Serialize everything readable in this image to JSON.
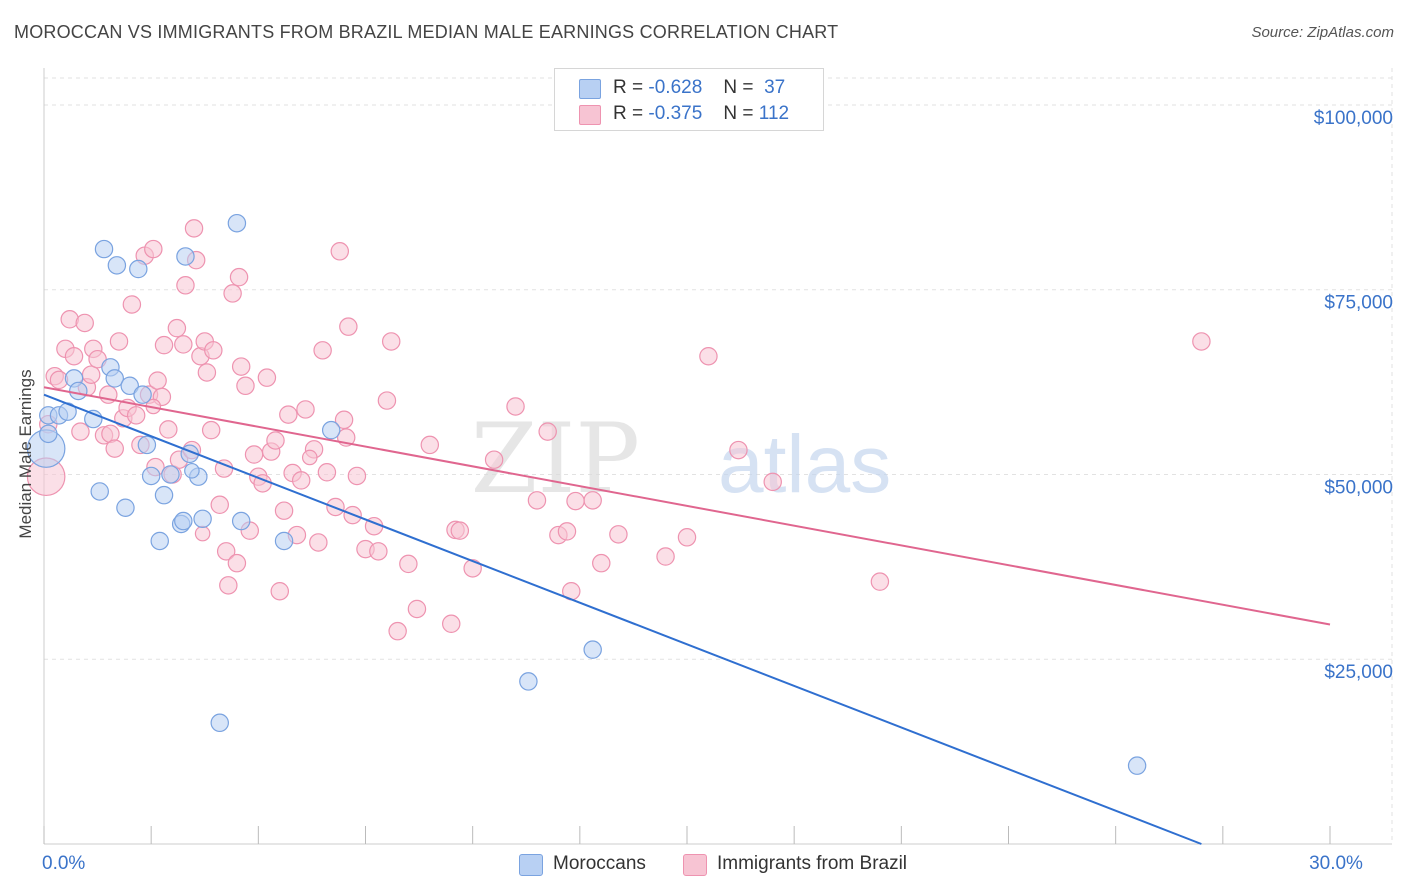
{
  "title": "MOROCCAN VS IMMIGRANTS FROM BRAZIL MEDIAN MALE EARNINGS CORRELATION CHART",
  "source": "Source: ZipAtlas.com",
  "watermark": {
    "part1": "ZIP",
    "part2": "atlas"
  },
  "legend": {
    "rows": [
      {
        "r_label": "R =",
        "r_value": "-0.628",
        "n_label": "N =",
        "n_value": "37"
      },
      {
        "r_label": "R =",
        "r_value": "-0.375",
        "n_label": "N =",
        "n_value": "112"
      }
    ]
  },
  "bottom_legend": {
    "moroccans": "Moroccans",
    "brazil": "Immigrants from Brazil"
  },
  "colors": {
    "moroccans_fill": "#b8d0f3",
    "moroccans_stroke": "#7aa3e0",
    "moroccans_line": "#2f6fd0",
    "brazil_fill": "#f7c4d3",
    "brazil_stroke": "#ee93b0",
    "brazil_line": "#e0668f",
    "tick_label": "#3a73c9",
    "grid": "#e2e2e2"
  },
  "chart_data": {
    "type": "scatter",
    "title": "MOROCCAN VS IMMIGRANTS FROM BRAZIL MEDIAN MALE EARNINGS CORRELATION CHART",
    "xlabel": "",
    "ylabel": "Median Male Earnings",
    "xlim": [
      0,
      30
    ],
    "ylim": [
      0,
      105000
    ],
    "x_tick_labels": [
      {
        "value": 0,
        "label": "0.0%"
      },
      {
        "value": 30,
        "label": "30.0%"
      }
    ],
    "y_tick_labels": [
      {
        "value": 25000,
        "label": "$25,000"
      },
      {
        "value": 50000,
        "label": "$50,000"
      },
      {
        "value": 75000,
        "label": "$75,000"
      },
      {
        "value": 100000,
        "label": "$100,000"
      }
    ],
    "grid": true,
    "legend_position": "top-center",
    "series": [
      {
        "name": "Moroccans",
        "r": -0.628,
        "n": 37,
        "trend": {
          "x": [
            0,
            27.0
          ],
          "y": [
            60800,
            0
          ]
        },
        "points": [
          [
            0.05,
            53500,
            26
          ],
          [
            0.1,
            58000,
            12
          ],
          [
            0.1,
            55500,
            12
          ],
          [
            0.35,
            58000,
            12
          ],
          [
            0.55,
            58500,
            12
          ],
          [
            0.7,
            63000,
            12
          ],
          [
            0.8,
            61300,
            12
          ],
          [
            1.15,
            57500,
            12
          ],
          [
            1.3,
            47700,
            12
          ],
          [
            1.4,
            80500,
            12
          ],
          [
            1.55,
            64500,
            12
          ],
          [
            1.65,
            63000,
            12
          ],
          [
            1.7,
            78300,
            12
          ],
          [
            1.9,
            45500,
            12
          ],
          [
            2.0,
            62000,
            12
          ],
          [
            2.2,
            77800,
            12
          ],
          [
            2.3,
            60800,
            12
          ],
          [
            2.4,
            54000,
            12
          ],
          [
            2.5,
            49800,
            12
          ],
          [
            2.7,
            41000,
            12
          ],
          [
            2.8,
            47200,
            12
          ],
          [
            2.95,
            50000,
            12
          ],
          [
            3.2,
            43300,
            12
          ],
          [
            3.25,
            43700,
            12
          ],
          [
            3.3,
            79500,
            12
          ],
          [
            3.4,
            52800,
            12
          ],
          [
            3.6,
            49700,
            12
          ],
          [
            3.7,
            44000,
            12
          ],
          [
            4.1,
            16400,
            12
          ],
          [
            4.5,
            84000,
            12
          ],
          [
            4.6,
            43700,
            12
          ],
          [
            5.6,
            41000,
            12
          ],
          [
            6.7,
            56000,
            12
          ],
          [
            11.3,
            22000,
            12
          ],
          [
            12.8,
            26300,
            12
          ],
          [
            25.5,
            10600,
            12
          ],
          [
            3.45,
            50500,
            10
          ]
        ]
      },
      {
        "name": "Immigrants from Brazil",
        "r": -0.375,
        "n": 112,
        "trend": {
          "x": [
            0,
            30
          ],
          "y": [
            61800,
            29700
          ]
        },
        "points": [
          [
            0.05,
            49700,
            26
          ],
          [
            0.1,
            56800,
            12
          ],
          [
            0.25,
            63300,
            12
          ],
          [
            0.35,
            62800,
            12
          ],
          [
            0.5,
            67000,
            12
          ],
          [
            0.6,
            71000,
            12
          ],
          [
            0.7,
            66000,
            12
          ],
          [
            0.85,
            55800,
            12
          ],
          [
            0.95,
            70500,
            12
          ],
          [
            1.0,
            61800,
            12
          ],
          [
            1.1,
            63500,
            12
          ],
          [
            1.15,
            67000,
            12
          ],
          [
            1.25,
            65600,
            12
          ],
          [
            1.4,
            55300,
            12
          ],
          [
            1.5,
            60800,
            12
          ],
          [
            1.55,
            55500,
            12
          ],
          [
            1.65,
            53500,
            12
          ],
          [
            1.75,
            68000,
            12
          ],
          [
            1.85,
            57600,
            12
          ],
          [
            1.95,
            59000,
            12
          ],
          [
            2.05,
            73000,
            12
          ],
          [
            2.15,
            58000,
            12
          ],
          [
            2.25,
            54000,
            12
          ],
          [
            2.35,
            79600,
            12
          ],
          [
            2.45,
            60800,
            12
          ],
          [
            2.55,
            80500,
            12
          ],
          [
            2.6,
            51000,
            12
          ],
          [
            2.65,
            62700,
            12
          ],
          [
            2.75,
            60500,
            12
          ],
          [
            2.8,
            67500,
            12
          ],
          [
            2.9,
            56100,
            12
          ],
          [
            3.0,
            50000,
            12
          ],
          [
            3.1,
            69800,
            12
          ],
          [
            3.15,
            52000,
            12
          ],
          [
            3.25,
            67600,
            12
          ],
          [
            3.3,
            75600,
            12
          ],
          [
            3.45,
            53300,
            12
          ],
          [
            3.5,
            83300,
            12
          ],
          [
            3.55,
            79000,
            12
          ],
          [
            3.65,
            66000,
            12
          ],
          [
            3.75,
            68000,
            12
          ],
          [
            3.8,
            63800,
            12
          ],
          [
            3.9,
            56000,
            12
          ],
          [
            3.95,
            66800,
            12
          ],
          [
            4.1,
            45900,
            12
          ],
          [
            4.2,
            50800,
            12
          ],
          [
            4.25,
            39600,
            12
          ],
          [
            4.3,
            35000,
            12
          ],
          [
            4.4,
            74500,
            12
          ],
          [
            4.5,
            38000,
            12
          ],
          [
            4.55,
            76700,
            12
          ],
          [
            4.6,
            64600,
            12
          ],
          [
            4.7,
            62000,
            12
          ],
          [
            4.8,
            42400,
            12
          ],
          [
            4.9,
            52700,
            12
          ],
          [
            5.0,
            49700,
            12
          ],
          [
            5.1,
            48800,
            12
          ],
          [
            5.2,
            63100,
            12
          ],
          [
            5.3,
            53100,
            12
          ],
          [
            5.4,
            54600,
            12
          ],
          [
            5.5,
            34200,
            12
          ],
          [
            5.6,
            45100,
            12
          ],
          [
            5.7,
            58100,
            12
          ],
          [
            5.8,
            50200,
            12
          ],
          [
            5.9,
            41800,
            12
          ],
          [
            6.0,
            49200,
            12
          ],
          [
            6.1,
            58800,
            12
          ],
          [
            6.3,
            53400,
            12
          ],
          [
            6.4,
            40800,
            12
          ],
          [
            6.5,
            66800,
            12
          ],
          [
            6.6,
            50300,
            12
          ],
          [
            6.8,
            45600,
            12
          ],
          [
            6.9,
            80200,
            12
          ],
          [
            7.0,
            57400,
            12
          ],
          [
            7.05,
            55000,
            12
          ],
          [
            7.1,
            70000,
            12
          ],
          [
            7.2,
            44500,
            12
          ],
          [
            7.3,
            49800,
            12
          ],
          [
            7.5,
            39900,
            12
          ],
          [
            7.7,
            43000,
            12
          ],
          [
            7.8,
            39600,
            12
          ],
          [
            8.0,
            60000,
            12
          ],
          [
            8.1,
            68000,
            12
          ],
          [
            8.25,
            28800,
            12
          ],
          [
            8.5,
            37900,
            12
          ],
          [
            8.7,
            31800,
            12
          ],
          [
            9.0,
            54000,
            12
          ],
          [
            9.5,
            29800,
            12
          ],
          [
            9.6,
            42500,
            12
          ],
          [
            9.7,
            42400,
            12
          ],
          [
            10.0,
            37300,
            12
          ],
          [
            10.5,
            52000,
            12
          ],
          [
            11.0,
            59200,
            12
          ],
          [
            11.5,
            46500,
            12
          ],
          [
            11.75,
            55800,
            12
          ],
          [
            12.0,
            41800,
            12
          ],
          [
            12.2,
            42300,
            12
          ],
          [
            12.3,
            34200,
            12
          ],
          [
            12.4,
            46400,
            12
          ],
          [
            12.8,
            46500,
            12
          ],
          [
            13.0,
            38000,
            12
          ],
          [
            13.4,
            41900,
            12
          ],
          [
            14.5,
            38900,
            12
          ],
          [
            15.0,
            41500,
            12
          ],
          [
            15.5,
            66000,
            12
          ],
          [
            16.2,
            53300,
            12
          ],
          [
            17.0,
            49000,
            12
          ],
          [
            19.5,
            35500,
            12
          ],
          [
            27.0,
            68000,
            12
          ],
          [
            3.7,
            42000,
            10
          ],
          [
            6.2,
            52300,
            10
          ],
          [
            2.55,
            59200,
            10
          ]
        ]
      }
    ]
  }
}
